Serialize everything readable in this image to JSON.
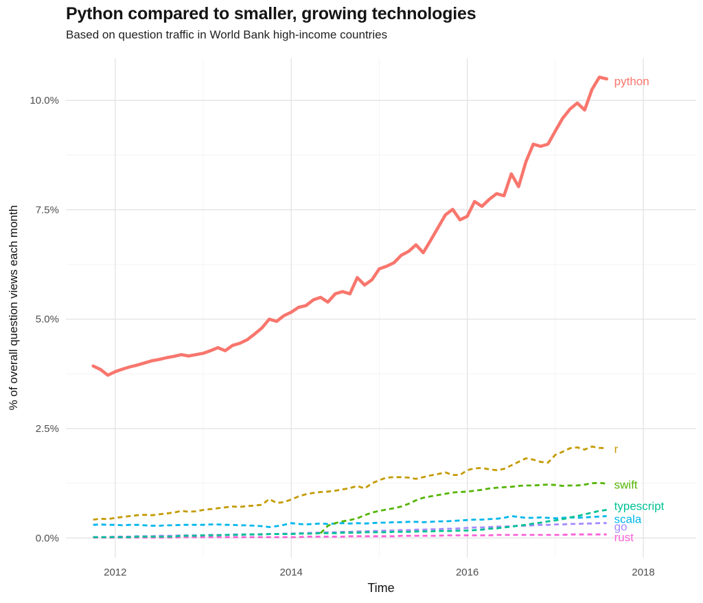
{
  "title": "Python compared to smaller, growing technologies",
  "subtitle": "Based on question traffic in World Bank high-income countries",
  "chart_data": {
    "type": "line",
    "title": "Python compared to smaller, growing technologies",
    "subtitle": "Based on question traffic in World Bank high-income countries",
    "xlabel": "Time",
    "ylabel": "% of overall question views each month",
    "grid": "on",
    "legend_position": "labels-at-line-ends",
    "x_unit": "months, starting Oct 2011",
    "start_year": 2011.75,
    "x_range": [
      2011.44,
      2018.6
    ],
    "y_range": [
      -0.45,
      10.96
    ],
    "x_ticks": [
      {
        "label": "2012",
        "year": 2012
      },
      {
        "label": "2014",
        "year": 2014
      },
      {
        "label": "2016",
        "year": 2016
      },
      {
        "label": "2018",
        "year": 2018
      }
    ],
    "x_minor": [
      2013,
      2015,
      2017
    ],
    "y_ticks": [
      {
        "label": "0.0%",
        "value": 0
      },
      {
        "label": "2.5%",
        "value": 2.5
      },
      {
        "label": "5.0%",
        "value": 5
      },
      {
        "label": "7.5%",
        "value": 7.5
      },
      {
        "label": "10.0%",
        "value": 10
      }
    ],
    "y_minor": [
      1.25,
      3.75,
      6.25,
      8.75
    ],
    "series": [
      {
        "name": "go",
        "color": "#A58AFF",
        "style": "dashed",
        "start_index": 0,
        "label_dy": 6,
        "values": [
          0.02,
          0.02,
          0.02,
          0.03,
          0.03,
          0.03,
          0.04,
          0.04,
          0.04,
          0.05,
          0.05,
          0.05,
          0.06,
          0.06,
          0.06,
          0.06,
          0.07,
          0.07,
          0.07,
          0.08,
          0.08,
          0.08,
          0.08,
          0.09,
          0.09,
          0.09,
          0.1,
          0.1,
          0.11,
          0.11,
          0.12,
          0.12,
          0.13,
          0.13,
          0.14,
          0.14,
          0.15,
          0.15,
          0.16,
          0.16,
          0.17,
          0.17,
          0.18,
          0.18,
          0.19,
          0.19,
          0.2,
          0.2,
          0.21,
          0.21,
          0.22,
          0.23,
          0.24,
          0.24,
          0.25,
          0.26,
          0.26,
          0.27,
          0.28,
          0.28,
          0.29,
          0.3,
          0.3,
          0.31,
          0.31,
          0.32,
          0.32,
          0.33,
          0.33,
          0.34,
          0.34
        ]
      },
      {
        "name": "rust",
        "color": "#FB61D7",
        "style": "dashed",
        "start_index": 0,
        "label_dy": 5,
        "values": [
          0.01,
          0.01,
          0.01,
          0.01,
          0.01,
          0.01,
          0.01,
          0.01,
          0.01,
          0.01,
          0.01,
          0.01,
          0.02,
          0.02,
          0.02,
          0.02,
          0.02,
          0.02,
          0.02,
          0.02,
          0.02,
          0.02,
          0.02,
          0.02,
          0.02,
          0.02,
          0.02,
          0.02,
          0.02,
          0.03,
          0.03,
          0.03,
          0.03,
          0.03,
          0.03,
          0.04,
          0.04,
          0.04,
          0.04,
          0.04,
          0.04,
          0.04,
          0.05,
          0.05,
          0.05,
          0.05,
          0.05,
          0.05,
          0.06,
          0.06,
          0.06,
          0.06,
          0.06,
          0.06,
          0.06,
          0.07,
          0.07,
          0.07,
          0.07,
          0.07,
          0.07,
          0.07,
          0.07,
          0.07,
          0.07,
          0.08,
          0.08,
          0.08,
          0.08,
          0.08,
          0.08
        ]
      },
      {
        "name": "scala",
        "color": "#00B6EB",
        "style": "dashed",
        "start_index": 0,
        "label_dy": 5,
        "values": [
          0.3,
          0.31,
          0.3,
          0.3,
          0.29,
          0.3,
          0.3,
          0.29,
          0.28,
          0.28,
          0.29,
          0.29,
          0.3,
          0.3,
          0.3,
          0.3,
          0.31,
          0.31,
          0.3,
          0.3,
          0.29,
          0.29,
          0.28,
          0.27,
          0.25,
          0.27,
          0.3,
          0.34,
          0.32,
          0.31,
          0.32,
          0.33,
          0.32,
          0.33,
          0.34,
          0.33,
          0.34,
          0.33,
          0.34,
          0.35,
          0.35,
          0.36,
          0.36,
          0.37,
          0.37,
          0.36,
          0.37,
          0.38,
          0.38,
          0.39,
          0.4,
          0.41,
          0.42,
          0.42,
          0.43,
          0.44,
          0.46,
          0.5,
          0.48,
          0.46,
          0.46,
          0.47,
          0.46,
          0.45,
          0.46,
          0.47,
          0.46,
          0.47,
          0.48,
          0.49,
          0.5
        ]
      },
      {
        "name": "typescript",
        "color": "#00C094",
        "style": "dashed",
        "start_index": 0,
        "label_dy": -5,
        "values": [
          0.02,
          0.02,
          0.02,
          0.02,
          0.02,
          0.02,
          0.03,
          0.03,
          0.03,
          0.03,
          0.03,
          0.03,
          0.05,
          0.05,
          0.05,
          0.06,
          0.06,
          0.06,
          0.07,
          0.07,
          0.07,
          0.08,
          0.08,
          0.08,
          0.09,
          0.09,
          0.09,
          0.09,
          0.1,
          0.1,
          0.1,
          0.11,
          0.11,
          0.11,
          0.12,
          0.12,
          0.12,
          0.13,
          0.13,
          0.13,
          0.13,
          0.14,
          0.14,
          0.14,
          0.15,
          0.15,
          0.15,
          0.16,
          0.16,
          0.16,
          0.17,
          0.17,
          0.18,
          0.19,
          0.21,
          0.22,
          0.24,
          0.26,
          0.28,
          0.3,
          0.33,
          0.35,
          0.38,
          0.4,
          0.43,
          0.47,
          0.5,
          0.54,
          0.58,
          0.62,
          0.64
        ]
      },
      {
        "name": "swift",
        "color": "#53B400",
        "style": "dashed",
        "start_index": 31,
        "label_dy": 2,
        "values": [
          0.11,
          0.28,
          0.34,
          0.38,
          0.41,
          0.45,
          0.52,
          0.58,
          0.62,
          0.65,
          0.68,
          0.72,
          0.78,
          0.86,
          0.92,
          0.95,
          0.98,
          1.01,
          1.04,
          1.05,
          1.06,
          1.08,
          1.1,
          1.13,
          1.15,
          1.16,
          1.17,
          1.19,
          1.2,
          1.2,
          1.21,
          1.22,
          1.21,
          1.19,
          1.2,
          1.2,
          1.22,
          1.25,
          1.26,
          1.24
        ]
      },
      {
        "name": "r",
        "color": "#C49A00",
        "style": "dashed",
        "start_index": 0,
        "label_dy": 2,
        "values": [
          0.42,
          0.44,
          0.43,
          0.46,
          0.48,
          0.5,
          0.52,
          0.53,
          0.52,
          0.54,
          0.56,
          0.58,
          0.62,
          0.6,
          0.61,
          0.64,
          0.66,
          0.68,
          0.7,
          0.72,
          0.71,
          0.73,
          0.74,
          0.76,
          0.89,
          0.8,
          0.82,
          0.88,
          0.95,
          1.0,
          1.03,
          1.05,
          1.06,
          1.08,
          1.11,
          1.14,
          1.19,
          1.13,
          1.25,
          1.32,
          1.38,
          1.39,
          1.39,
          1.38,
          1.35,
          1.39,
          1.43,
          1.46,
          1.5,
          1.44,
          1.44,
          1.55,
          1.59,
          1.6,
          1.57,
          1.55,
          1.58,
          1.66,
          1.74,
          1.82,
          1.79,
          1.74,
          1.72,
          1.9,
          1.97,
          2.05,
          2.07,
          2.02,
          2.09,
          2.06,
          2.05
        ]
      },
      {
        "name": "python",
        "color": "#F8766D",
        "style": "solid",
        "start_index": 0,
        "label_dy": 4,
        "values": [
          3.93,
          3.85,
          3.72,
          3.8,
          3.86,
          3.91,
          3.95,
          4.0,
          4.05,
          4.08,
          4.12,
          4.15,
          4.19,
          4.16,
          4.19,
          4.22,
          4.28,
          4.35,
          4.28,
          4.4,
          4.45,
          4.53,
          4.66,
          4.8,
          5.0,
          4.95,
          5.08,
          5.16,
          5.27,
          5.31,
          5.44,
          5.5,
          5.39,
          5.58,
          5.63,
          5.58,
          5.95,
          5.78,
          5.9,
          6.15,
          6.21,
          6.29,
          6.46,
          6.55,
          6.7,
          6.52,
          6.8,
          7.09,
          7.38,
          7.51,
          7.27,
          7.35,
          7.69,
          7.58,
          7.74,
          7.87,
          7.82,
          8.32,
          8.03,
          8.6,
          9.0,
          8.95,
          9.0,
          9.3,
          9.59,
          9.8,
          9.94,
          9.78,
          10.25,
          10.53,
          10.49
        ]
      }
    ]
  },
  "colors": {
    "grid_major": "#e3e3e3",
    "grid_minor": "#f1f1f1",
    "tick_text": "#4d4d4d",
    "background": "#ffffff"
  }
}
